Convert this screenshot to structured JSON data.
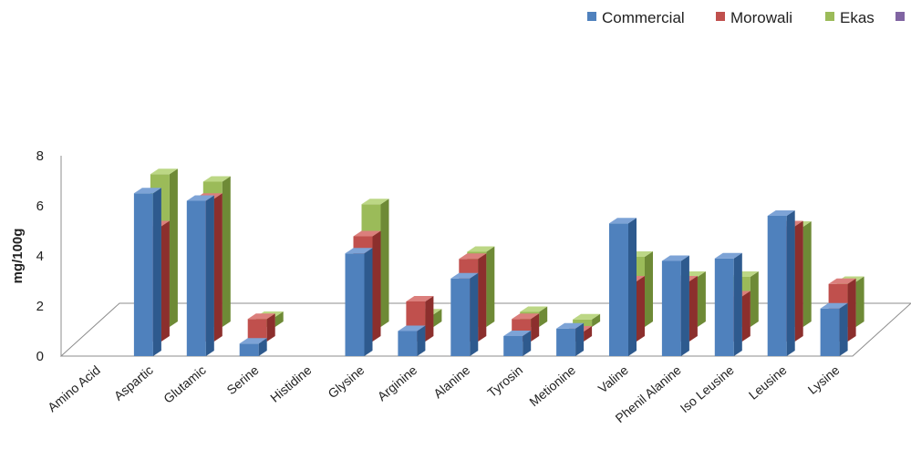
{
  "chart_data": {
    "type": "bar",
    "style": "3d-clustered",
    "ylabel": "mg/100g",
    "xlabel": "",
    "ylim": [
      0,
      8
    ],
    "yticks": [
      0,
      2,
      4,
      6,
      8
    ],
    "grid": false,
    "legend_position": "top-right",
    "categories": [
      "Amino Acid",
      "Aspartic",
      "Glutamic",
      "Serine",
      "Histidine",
      "Glysine",
      "Arginine",
      "Alanine",
      "Tyrosin",
      "Metionine",
      "Valine",
      "Phenil Alanine",
      "Iso Leusine",
      "Leusine",
      "Lysine"
    ],
    "series": [
      {
        "name": "Commercial",
        "color": "#4f81bd",
        "dark": "#2e5a8e",
        "top": "#7da3d6",
        "values": [
          null,
          6.5,
          6.2,
          0.5,
          null,
          4.1,
          1.0,
          3.1,
          0.8,
          1.1,
          5.3,
          3.8,
          3.9,
          5.6,
          1.9
        ]
      },
      {
        "name": "Morowali",
        "color": "#c0504d",
        "dark": "#8c2f2d",
        "top": "#db7f7c",
        "values": [
          null,
          4.6,
          5.7,
          0.9,
          null,
          4.2,
          1.6,
          3.3,
          0.9,
          0.4,
          2.4,
          2.4,
          1.8,
          4.6,
          2.3
        ]
      },
      {
        "name": "Ekas",
        "color": "#9bbb59",
        "dark": "#6e8a36",
        "top": "#bcd785",
        "values": [
          null,
          6.1,
          5.8,
          0.4,
          null,
          4.9,
          0.5,
          3.0,
          0.6,
          0.3,
          2.8,
          2.0,
          2.0,
          4.0,
          1.8
        ]
      }
    ],
    "legend_extra_color": "#8064a2"
  }
}
